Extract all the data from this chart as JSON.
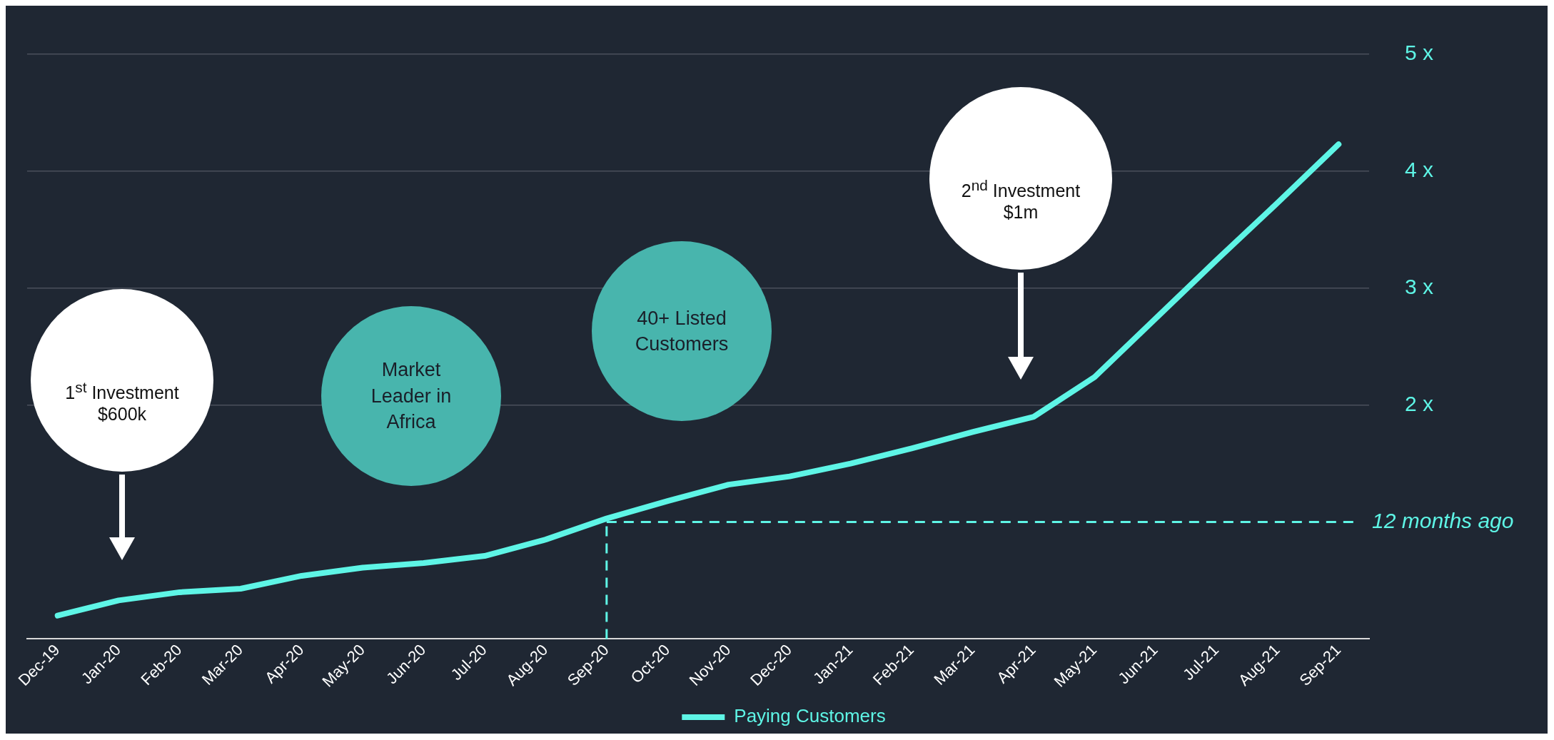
{
  "chart_data": {
    "type": "line",
    "categories": [
      "Dec-19",
      "Jan-20",
      "Feb-20",
      "Mar-20",
      "Apr-20",
      "May-20",
      "Jun-20",
      "Jul-20",
      "Aug-20",
      "Sep-20",
      "Oct-20",
      "Nov-20",
      "Dec-20",
      "Jan-21",
      "Feb-21",
      "Mar-21",
      "Apr-21",
      "May-21",
      "Jun-21",
      "Jul-21",
      "Aug-21",
      "Sep-21"
    ],
    "series": [
      {
        "name": "Paying Customers",
        "color": "#5ef5e6",
        "values": [
          0.2,
          0.33,
          0.4,
          0.43,
          0.54,
          0.61,
          0.65,
          0.71,
          0.85,
          1.03,
          1.18,
          1.32,
          1.39,
          1.5,
          1.63,
          1.77,
          1.9,
          2.24,
          2.74,
          3.24,
          3.73,
          4.23
        ]
      }
    ],
    "ylim": [
      0,
      5
    ],
    "yticks": [
      {
        "value": 2,
        "label": "2 x"
      },
      {
        "value": 3,
        "label": "3 x"
      },
      {
        "value": 4,
        "label": "4 x"
      },
      {
        "value": 5,
        "label": "5 x"
      }
    ],
    "grid": "y",
    "legend": "bottom",
    "marker": "none",
    "line_style": "solid",
    "ref_lines": [
      {
        "axis": "y",
        "value": 1,
        "label": "12 months ago",
        "color": "#5ef5e6",
        "line_style": "dashed"
      },
      {
        "axis": "x",
        "value": "Sep-20",
        "label": null,
        "color": "#5ef5e6",
        "line_style": "dashed"
      }
    ],
    "annotations": [
      "1$^{st}$ Investment $600k",
      "Market Leader in Africa",
      "40+ Listed Customers",
      "2$^{nd}$ Investment $1m"
    ]
  }
}
